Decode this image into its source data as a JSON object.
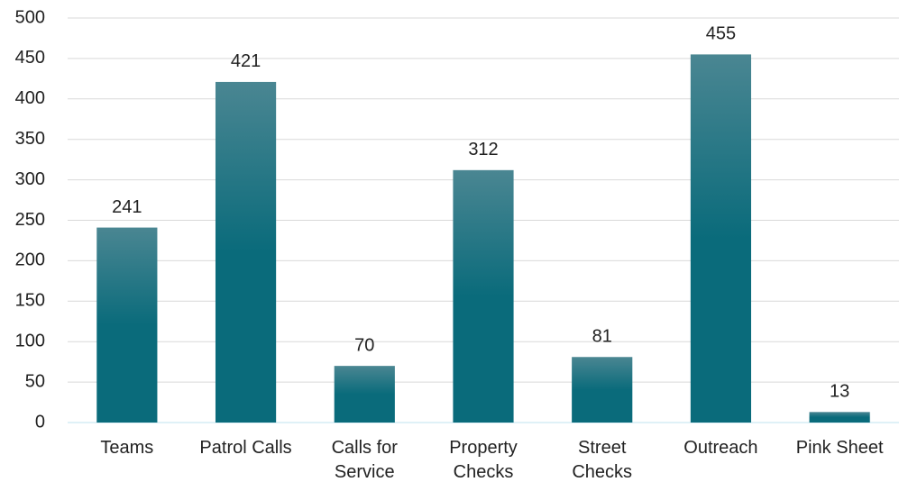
{
  "chart_data": {
    "type": "bar",
    "categories": [
      "Teams",
      "Patrol Calls",
      "Calls for Service",
      "Property Checks",
      "Street Checks",
      "Outreach",
      "Pink Sheet"
    ],
    "values": [
      241,
      421,
      70,
      312,
      81,
      455,
      13
    ],
    "color": "#0a6b7b",
    "gradient_top": "#4a8692",
    "ylim": [
      0,
      500
    ],
    "yticks": [
      0,
      50,
      100,
      150,
      200,
      250,
      300,
      350,
      400,
      450,
      500
    ],
    "grid": true
  }
}
